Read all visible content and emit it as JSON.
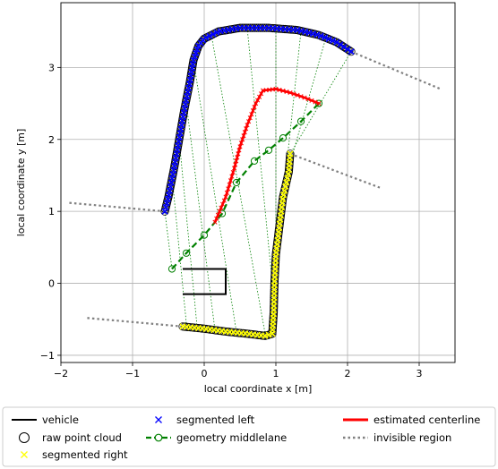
{
  "chart_data": {
    "type": "scatter",
    "xlabel": "local coordinate x [m]",
    "ylabel": "local coordinate y [m]",
    "xlim": [
      -2.0,
      3.5
    ],
    "ylim": [
      -1.1,
      3.9
    ],
    "xticks": [
      -2,
      -1,
      0,
      1,
      2,
      3
    ],
    "yticks": [
      -1,
      0,
      1,
      2,
      3
    ],
    "grid": true,
    "legend_position": "bottom",
    "legend": [
      {
        "label": "vehicle",
        "key": "vehicle"
      },
      {
        "label": "segmented left",
        "key": "left"
      },
      {
        "label": "estimated centerline",
        "key": "centerline"
      },
      {
        "label": "raw point cloud",
        "key": "raw"
      },
      {
        "label": "geometry middlelane",
        "key": "middle"
      },
      {
        "label": "invisible region",
        "key": "invisible"
      },
      {
        "label": "segmented right",
        "key": "right"
      }
    ],
    "colors": {
      "left": "#0000ff",
      "right": "#ffff00",
      "centerline": "#ff0000",
      "middle": "#008000",
      "invisible": "#808080",
      "vehicle": "#000000"
    },
    "vehicle": [
      [
        -0.3,
        0.2
      ],
      [
        0.3,
        0.2
      ],
      [
        0.3,
        -0.15
      ],
      [
        -0.3,
        -0.15
      ]
    ],
    "left_boundary": [
      [
        -0.55,
        1.0
      ],
      [
        -0.5,
        1.2
      ],
      [
        -0.42,
        1.6
      ],
      [
        -0.35,
        2.0
      ],
      [
        -0.28,
        2.4
      ],
      [
        -0.2,
        2.8
      ],
      [
        -0.15,
        3.1
      ],
      [
        -0.08,
        3.3
      ],
      [
        0.0,
        3.4
      ],
      [
        0.2,
        3.5
      ],
      [
        0.5,
        3.55
      ],
      [
        0.9,
        3.55
      ],
      [
        1.3,
        3.52
      ],
      [
        1.6,
        3.45
      ],
      [
        1.85,
        3.35
      ],
      [
        2.05,
        3.22
      ]
    ],
    "right_boundary": [
      [
        -0.3,
        -0.6
      ],
      [
        0.0,
        -0.63
      ],
      [
        0.3,
        -0.67
      ],
      [
        0.6,
        -0.7
      ],
      [
        0.85,
        -0.73
      ],
      [
        0.95,
        -0.7
      ],
      [
        0.97,
        -0.4
      ],
      [
        0.98,
        0.0
      ],
      [
        1.0,
        0.4
      ],
      [
        1.05,
        0.8
      ],
      [
        1.1,
        1.2
      ],
      [
        1.18,
        1.55
      ],
      [
        1.2,
        1.8
      ]
    ],
    "middlelane": [
      [
        -0.45,
        0.2
      ],
      [
        -0.25,
        0.42
      ],
      [
        0.0,
        0.67
      ],
      [
        0.25,
        0.97
      ],
      [
        0.45,
        1.4
      ],
      [
        0.7,
        1.7
      ],
      [
        0.9,
        1.85
      ],
      [
        1.1,
        2.02
      ],
      [
        1.35,
        2.25
      ],
      [
        1.6,
        2.5
      ]
    ],
    "centerline": [
      [
        0.15,
        0.85
      ],
      [
        0.3,
        1.2
      ],
      [
        0.42,
        1.6
      ],
      [
        0.5,
        1.9
      ],
      [
        0.6,
        2.2
      ],
      [
        0.72,
        2.5
      ],
      [
        0.82,
        2.68
      ],
      [
        1.0,
        2.7
      ],
      [
        1.2,
        2.65
      ],
      [
        1.4,
        2.58
      ],
      [
        1.6,
        2.5
      ]
    ],
    "correspondences": [
      [
        [
          -0.55,
          1.0
        ],
        [
          -0.45,
          0.2
        ]
      ],
      [
        [
          -0.45,
          1.5
        ],
        [
          -0.25,
          -0.55
        ]
      ],
      [
        [
          -0.35,
          2.0
        ],
        [
          -0.1,
          -0.6
        ]
      ],
      [
        [
          -0.25,
          2.5
        ],
        [
          0.15,
          -0.65
        ]
      ],
      [
        [
          -0.15,
          3.1
        ],
        [
          0.45,
          -0.68
        ]
      ],
      [
        [
          0.1,
          3.45
        ],
        [
          0.85,
          -0.7
        ]
      ],
      [
        [
          0.6,
          3.55
        ],
        [
          0.97,
          -0.2
        ]
      ],
      [
        [
          1.0,
          3.53
        ],
        [
          1.0,
          0.4
        ]
      ],
      [
        [
          1.35,
          3.5
        ],
        [
          1.08,
          1.0
        ]
      ],
      [
        [
          1.7,
          3.42
        ],
        [
          1.15,
          1.5
        ]
      ],
      [
        [
          2.05,
          3.22
        ],
        [
          1.2,
          1.8
        ]
      ]
    ],
    "invisible_regions": [
      [
        [
          -0.55,
          1.0
        ],
        [
          -1.9,
          1.12
        ]
      ],
      [
        [
          2.05,
          3.22
        ],
        [
          3.3,
          2.7
        ]
      ],
      [
        [
          1.2,
          1.8
        ],
        [
          2.45,
          1.33
        ]
      ],
      [
        [
          -0.3,
          -0.6
        ],
        [
          -1.65,
          -0.48
        ]
      ]
    ]
  }
}
